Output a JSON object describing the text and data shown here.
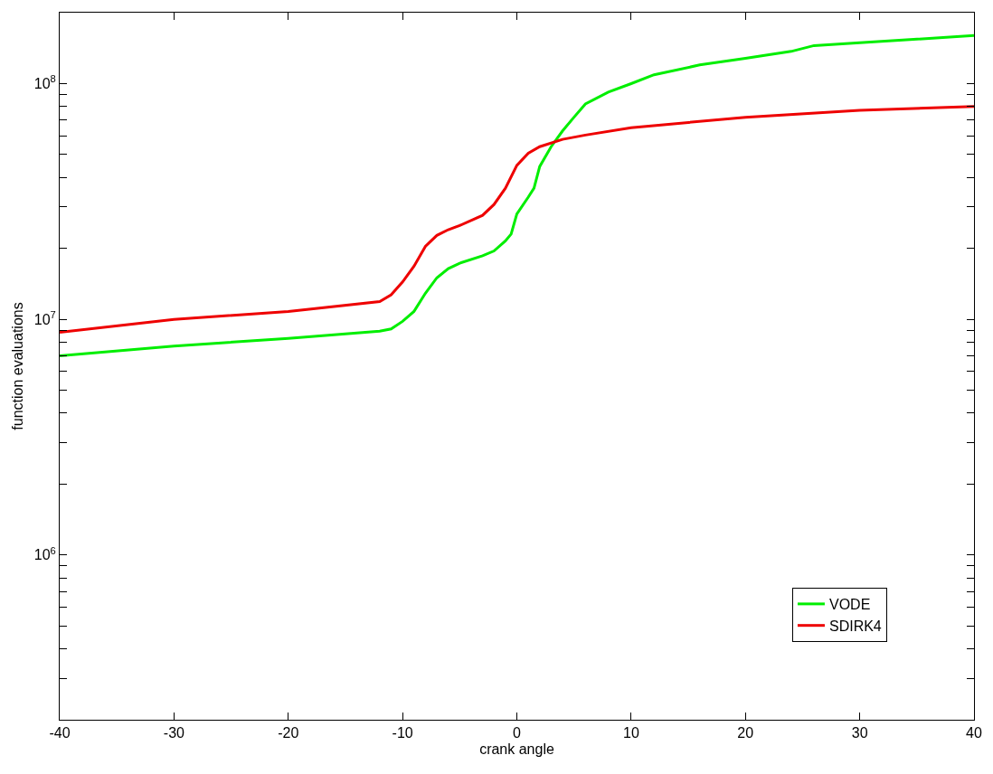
{
  "chart_data": {
    "type": "line",
    "xlabel": "crank angle",
    "ylabel": "function evaluations",
    "log": "y",
    "legend": "bottom right",
    "marker": "none",
    "line_style": "solid",
    "xlim": [
      -40,
      40
    ],
    "xticks": [
      -40,
      -30,
      -20,
      -10,
      0,
      10,
      20,
      30,
      40
    ],
    "ylim": [
      200000,
      200000000
    ],
    "yticks": [
      {
        "value": 200000,
        "label": null
      },
      {
        "value": 300000,
        "label": null
      },
      {
        "value": 400000,
        "label": null
      },
      {
        "value": 500000,
        "label": null
      },
      {
        "value": 600000,
        "label": null
      },
      {
        "value": 700000,
        "label": null
      },
      {
        "value": 800000,
        "label": null
      },
      {
        "value": 900000,
        "label": null
      },
      {
        "value": 1000000,
        "label": "10$^{6}$"
      },
      {
        "value": 2000000,
        "label": null
      },
      {
        "value": 3000000,
        "label": null
      },
      {
        "value": 4000000,
        "label": null
      },
      {
        "value": 5000000,
        "label": null
      },
      {
        "value": 6000000,
        "label": null
      },
      {
        "value": 7000000,
        "label": null
      },
      {
        "value": 8000000,
        "label": null
      },
      {
        "value": 9000000,
        "label": null
      },
      {
        "value": 10000000,
        "label": "10$^{7}$"
      },
      {
        "value": 20000000,
        "label": null
      },
      {
        "value": 30000000,
        "label": null
      },
      {
        "value": 40000000,
        "label": null
      },
      {
        "value": 50000000,
        "label": null
      },
      {
        "value": 60000000,
        "label": null
      },
      {
        "value": 70000000,
        "label": null
      },
      {
        "value": 80000000,
        "label": null
      },
      {
        "value": 90000000,
        "label": null
      },
      {
        "value": 100000000,
        "label": "10$^{8}$"
      },
      {
        "value": 200000000,
        "label": null
      }
    ],
    "series": [
      {
        "name": "VODE",
        "color": "#00ee00",
        "x": [
          -40,
          -30,
          -20,
          -12,
          -11,
          -10,
          -9,
          -8,
          -7,
          -6,
          -5,
          -3,
          -2,
          -1,
          -0.5,
          0,
          1,
          1.5,
          2,
          3,
          4,
          5,
          6,
          8,
          10,
          12,
          16,
          20,
          24,
          26,
          30,
          40
        ],
        "values": [
          7000000.0,
          7700000.0,
          8300000.0,
          8900000.0,
          9100000.0,
          9800000.0,
          10800000.0,
          12900000.0,
          15000000.0,
          16400000.0,
          17300000.0,
          18600000.0,
          19500000.0,
          21500000.0,
          23000000.0,
          28000000.0,
          33000000.0,
          36000000.0,
          44500000.0,
          54000000.0,
          63000000.0,
          72000000.0,
          82000000.0,
          92000000.0,
          100000000.0,
          109000000.0,
          120000000.0,
          128000000.0,
          137000000.0,
          145000000.0,
          149000000.0,
          160000000.0
        ]
      },
      {
        "name": "SDIRK4",
        "color": "#ee0000",
        "x": [
          -40,
          -30,
          -20,
          -12,
          -11,
          -10,
          -9,
          -8,
          -7,
          -6,
          -5,
          -3,
          -2,
          -1,
          0,
          1,
          2,
          4,
          6,
          10,
          20,
          30,
          40
        ],
        "values": [
          8800000.0,
          10000000.0,
          10800000.0,
          11900000.0,
          12700000.0,
          14400000.0,
          16800000.0,
          20400000.0,
          22700000.0,
          24000000.0,
          25000000.0,
          27600000.0,
          30700000.0,
          36000000.0,
          45000000.0,
          50700000.0,
          54000000.0,
          58000000.0,
          60500000.0,
          65000000.0,
          72000000.0,
          77000000.0,
          80000000.0
        ]
      }
    ]
  }
}
